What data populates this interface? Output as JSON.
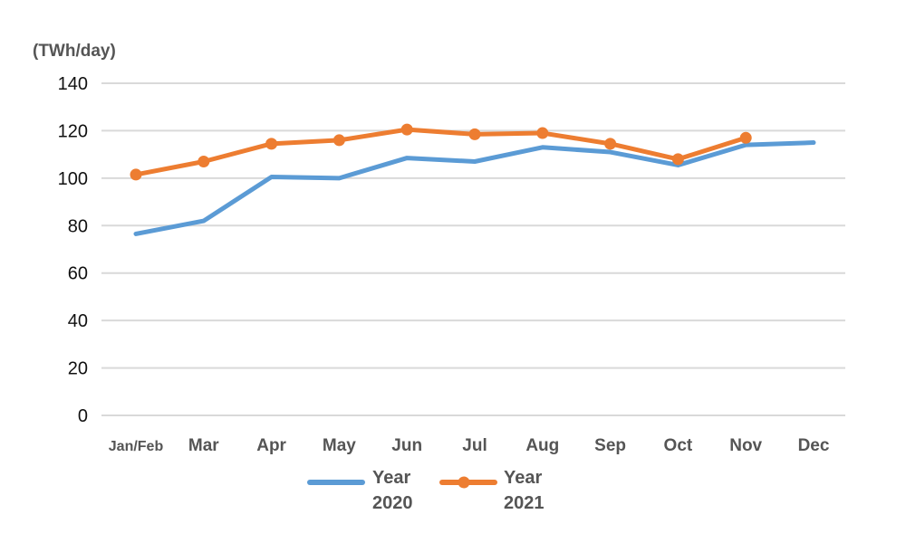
{
  "chart_data": {
    "type": "line",
    "unit_label": "(TWh/day)",
    "categories": [
      "Jan/Feb",
      "Mar",
      "Apr",
      "May",
      "Jun",
      "Jul",
      "Aug",
      "Sep",
      "Oct",
      "Nov",
      "Dec"
    ],
    "yticks": [
      "0",
      "20",
      "40",
      "60",
      "80",
      "100",
      "120",
      "140"
    ],
    "ylim": [
      0,
      140
    ],
    "grid": true,
    "legend_position": "bottom",
    "series": [
      {
        "name_line1": "Year",
        "name_line2": "2020",
        "color": "#5b9bd5",
        "markers": false,
        "values": [
          76.5,
          82,
          100.5,
          100,
          108.5,
          107,
          113,
          111,
          105.5,
          114,
          115
        ]
      },
      {
        "name_line1": "Year",
        "name_line2": "2021",
        "color": "#ed7d31",
        "markers": true,
        "values": [
          101.5,
          107,
          114.5,
          116,
          120.5,
          118.5,
          119,
          114.5,
          108,
          117,
          null
        ]
      }
    ]
  }
}
